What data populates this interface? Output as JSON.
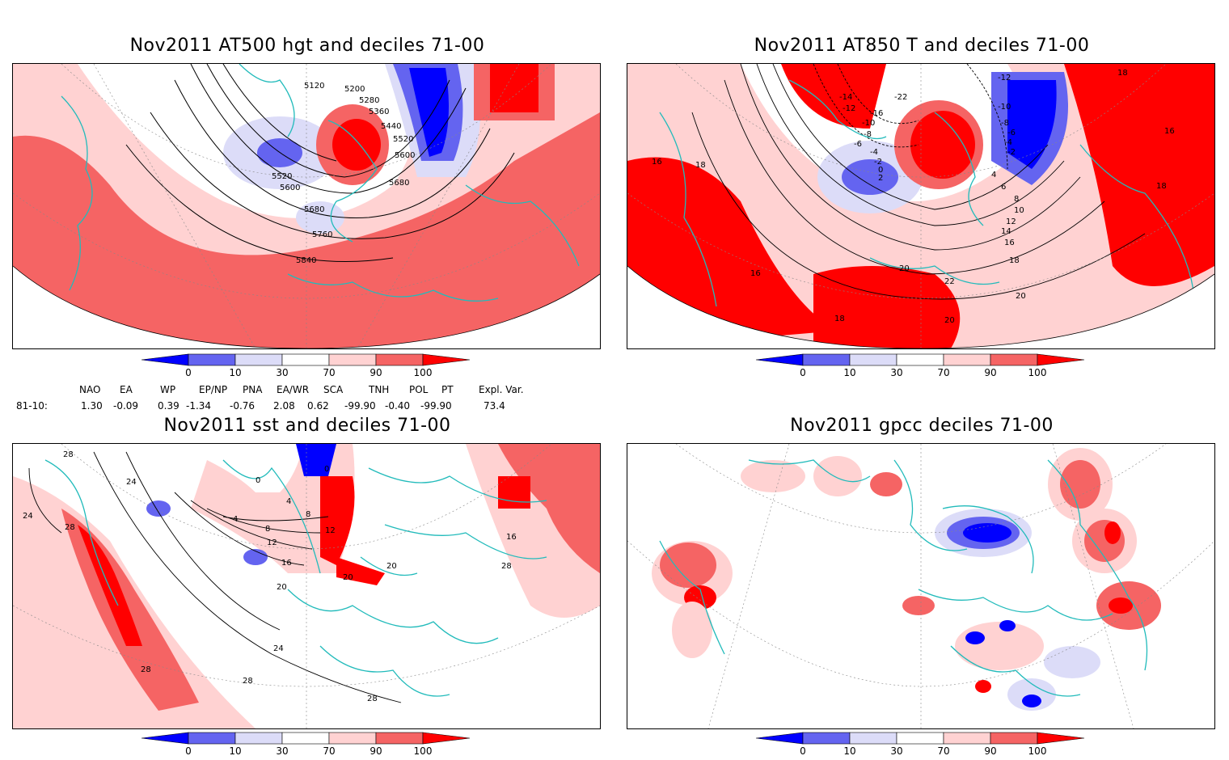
{
  "panels": [
    {
      "title": "Nov2011 AT500 hgt and deciles 71-00"
    },
    {
      "title": "Nov2011 AT850 T and deciles 71-00"
    },
    {
      "title": "Nov2011 sst and deciles 71-00"
    },
    {
      "title": "Nov2011 gpcc deciles 71-00"
    }
  ],
  "colorbar": {
    "labels": [
      "0",
      "10",
      "30",
      "70",
      "90",
      "100"
    ],
    "colors": [
      "#0000ff",
      "#6464f0",
      "#dcdcf8",
      "#ffffff",
      "#ffd2d2",
      "#f56464",
      "#ff0000"
    ]
  },
  "contours": {
    "hgt": [
      "5120",
      "5200",
      "5280",
      "5360",
      "5440",
      "5520",
      "5600",
      "5680",
      "5520",
      "5600",
      "5680",
      "5760",
      "5840"
    ],
    "t850": [
      "-22",
      "-14",
      "-12",
      "-16",
      "-10",
      "-8",
      "-6",
      "-4",
      "-2",
      "0",
      "2",
      "4",
      "6",
      "8",
      "10",
      "12",
      "14",
      "16",
      "18",
      "20",
      "22",
      "-12",
      "-10",
      "-8",
      "-6",
      "-4",
      "-2",
      "16",
      "18",
      "18",
      "18",
      "16",
      "16",
      "18",
      "20",
      "20"
    ],
    "sst": [
      "28",
      "24",
      "24",
      "28",
      "0",
      "4",
      "8",
      "12",
      "16",
      "20",
      "20",
      "20",
      "24",
      "28",
      "28",
      "28",
      "28",
      "16",
      "0",
      "4",
      "8",
      "12"
    ]
  },
  "indices": {
    "headers": [
      "NAO",
      "EA",
      "WP",
      "EP/NP",
      "PNA",
      "EA/WR",
      "SCA",
      "TNH",
      "POL",
      "PT",
      "Expl. Var."
    ],
    "row_label": "81-10:",
    "values": [
      "1.30",
      "-0.09",
      "0.39",
      "-1.34",
      "-0.76",
      "2.08",
      "0.62",
      "-99.90",
      "-0.40",
      "-99.90",
      "73.4"
    ]
  }
}
